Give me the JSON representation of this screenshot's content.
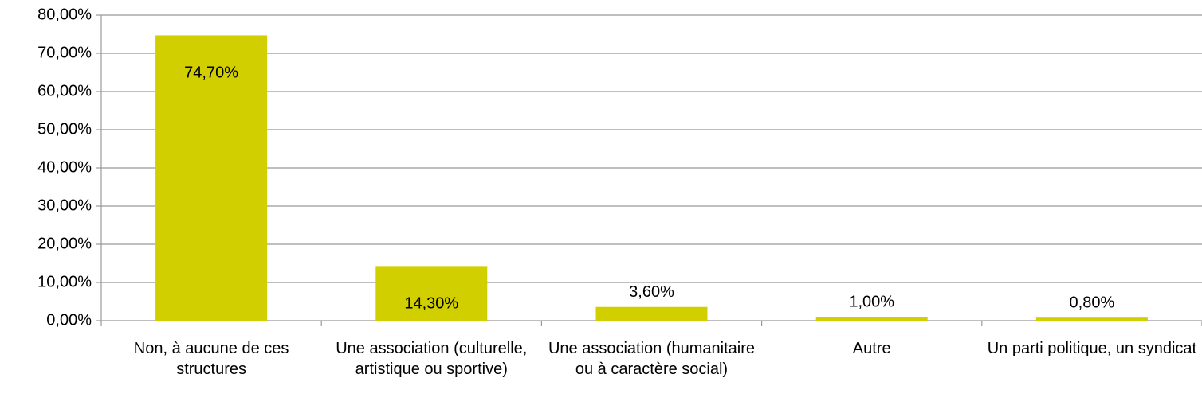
{
  "chart_data": {
    "type": "bar",
    "categories": [
      "Non, à aucune de ces structures",
      "Une association (culturelle, artistique ou sportive)",
      "Une association (humanitaire ou à caractère social)",
      "Autre",
      "Un parti politique, un syndicat"
    ],
    "values": [
      74.7,
      14.3,
      3.6,
      1.0,
      0.8
    ],
    "value_labels": [
      "74,70%",
      "14,30%",
      "3,60%",
      "1,00%",
      "0,80%"
    ],
    "color": "#d2cf00",
    "ylim": [
      0,
      80
    ],
    "yticks": [
      {
        "value": 0,
        "label": "0,00%"
      },
      {
        "value": 10,
        "label": "10,00%"
      },
      {
        "value": 20,
        "label": "20,00%"
      },
      {
        "value": 30,
        "label": "30,00%"
      },
      {
        "value": 40,
        "label": "40,00%"
      },
      {
        "value": 50,
        "label": "50,00%"
      },
      {
        "value": 60,
        "label": "60,00%"
      },
      {
        "value": 70,
        "label": "70,00%"
      },
      {
        "value": 80,
        "label": "80,00%"
      }
    ],
    "grid": true
  }
}
